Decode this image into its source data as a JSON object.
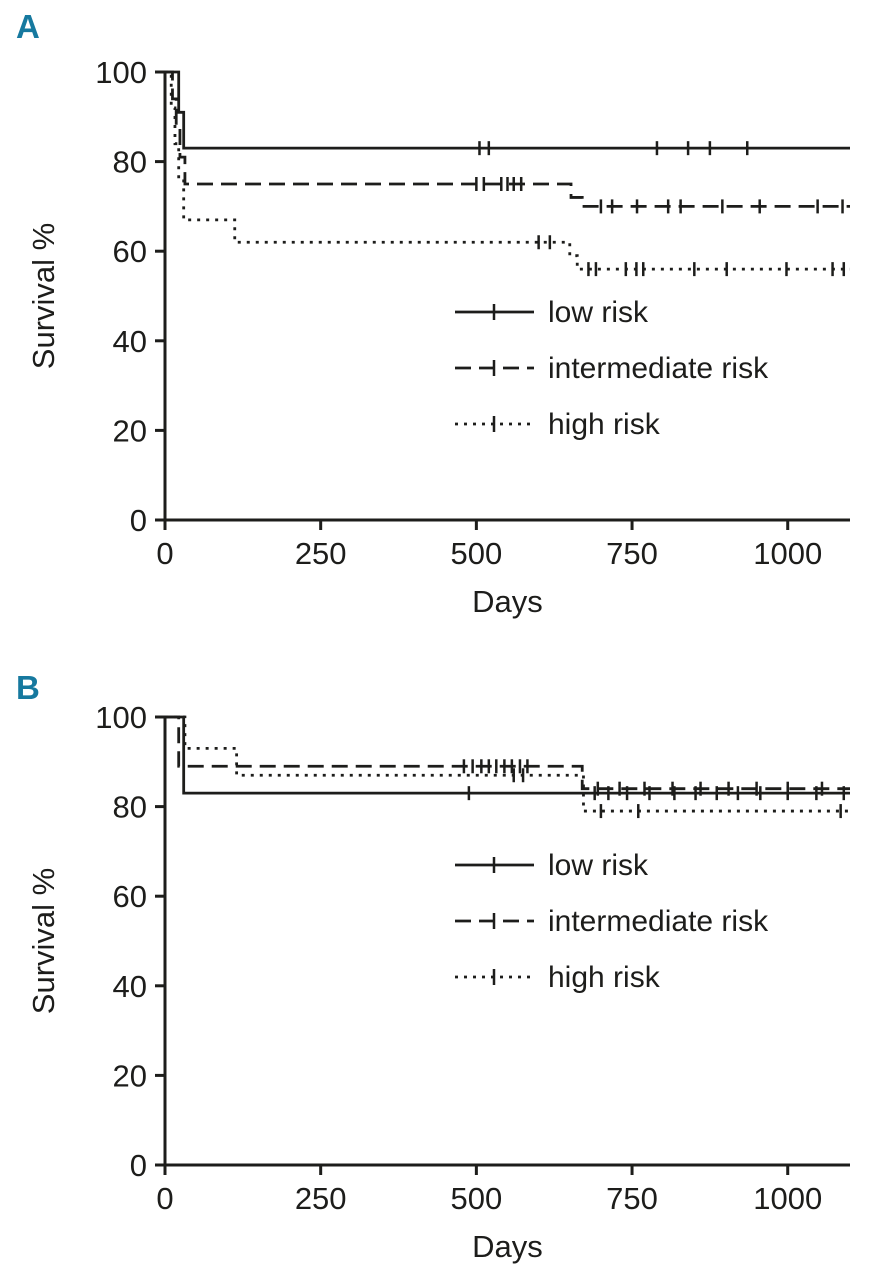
{
  "figure": {
    "line_color": "#1d1d1b",
    "accent_color": "#16799f",
    "panels": [
      {
        "letter": "A"
      },
      {
        "letter": "B"
      }
    ]
  },
  "chart_data": [
    {
      "type": "line",
      "subtype": "kaplan-meier-step",
      "panel": "A",
      "title": "",
      "xlabel": "Days",
      "ylabel": "Survival %",
      "xlim": [
        0,
        1100
      ],
      "ylim": [
        0,
        100
      ],
      "xticks": [
        0,
        250,
        500,
        750,
        1000
      ],
      "yticks": [
        0,
        20,
        40,
        60,
        80,
        100
      ],
      "grid": false,
      "legend_position": "center-right",
      "series": [
        {
          "name": "low risk",
          "style": "solid",
          "points": [
            [
              0,
              100
            ],
            [
              22,
              91
            ],
            [
              30,
              83
            ],
            [
              1100,
              83
            ]
          ],
          "censors": [
            [
              505,
              83
            ],
            [
              520,
              83
            ],
            [
              790,
              83
            ],
            [
              840,
              83
            ],
            [
              875,
              83
            ],
            [
              935,
              83
            ]
          ]
        },
        {
          "name": "intermediate risk",
          "style": "dashed",
          "points": [
            [
              0,
              100
            ],
            [
              12,
              94
            ],
            [
              18,
              88
            ],
            [
              24,
              81
            ],
            [
              32,
              75
            ],
            [
              652,
              72
            ],
            [
              670,
              70
            ],
            [
              1100,
              70
            ]
          ],
          "censors": [
            [
              500,
              75
            ],
            [
              512,
              75
            ],
            [
              540,
              75
            ],
            [
              550,
              75
            ],
            [
              560,
              75
            ],
            [
              572,
              75
            ],
            [
              700,
              70
            ],
            [
              718,
              70
            ],
            [
              758,
              70
            ],
            [
              808,
              70
            ],
            [
              828,
              70
            ],
            [
              895,
              70
            ],
            [
              955,
              70
            ],
            [
              1048,
              70
            ],
            [
              1088,
              70
            ]
          ]
        },
        {
          "name": "high risk",
          "style": "dotted",
          "points": [
            [
              0,
              100
            ],
            [
              10,
              92
            ],
            [
              16,
              84
            ],
            [
              22,
              76
            ],
            [
              30,
              67
            ],
            [
              112,
              62
            ],
            [
              650,
              59
            ],
            [
              662,
              56
            ],
            [
              1100,
              56
            ]
          ],
          "censors": [
            [
              600,
              62
            ],
            [
              618,
              62
            ],
            [
              680,
              56
            ],
            [
              692,
              56
            ],
            [
              740,
              56
            ],
            [
              757,
              56
            ],
            [
              768,
              56
            ],
            [
              850,
              56
            ],
            [
              902,
              56
            ],
            [
              998,
              56
            ],
            [
              1072,
              56
            ],
            [
              1090,
              56
            ]
          ]
        }
      ]
    },
    {
      "type": "line",
      "subtype": "kaplan-meier-step",
      "panel": "B",
      "title": "",
      "xlabel": "Days",
      "ylabel": "Survival %",
      "xlim": [
        0,
        1100
      ],
      "ylim": [
        0,
        100
      ],
      "xticks": [
        0,
        250,
        500,
        750,
        1000
      ],
      "yticks": [
        0,
        20,
        40,
        60,
        80,
        100
      ],
      "grid": false,
      "legend_position": "center-right",
      "series": [
        {
          "name": "low risk",
          "style": "solid",
          "points": [
            [
              0,
              100
            ],
            [
              30,
              83
            ],
            [
              1100,
              83
            ]
          ],
          "censors": [
            [
              488,
              83
            ],
            [
              690,
              83
            ],
            [
              712,
              83
            ],
            [
              742,
              83
            ],
            [
              778,
              83
            ],
            [
              818,
              83
            ],
            [
              852,
              83
            ],
            [
              886,
              83
            ],
            [
              920,
              83
            ],
            [
              956,
              83
            ],
            [
              1000,
              83
            ],
            [
              1046,
              83
            ],
            [
              1090,
              83
            ]
          ]
        },
        {
          "name": "intermediate risk",
          "style": "dashed",
          "points": [
            [
              0,
              100
            ],
            [
              22,
              89
            ],
            [
              670,
              84
            ],
            [
              1100,
              84
            ]
          ],
          "censors": [
            [
              480,
              89
            ],
            [
              494,
              89
            ],
            [
              508,
              89
            ],
            [
              520,
              89
            ],
            [
              532,
              89
            ],
            [
              545,
              89
            ],
            [
              557,
              89
            ],
            [
              570,
              89
            ],
            [
              582,
              89
            ],
            [
              695,
              84
            ],
            [
              730,
              84
            ],
            [
              770,
              84
            ],
            [
              815,
              84
            ],
            [
              860,
              84
            ],
            [
              905,
              84
            ],
            [
              950,
              84
            ],
            [
              1000,
              84
            ],
            [
              1055,
              84
            ]
          ]
        },
        {
          "name": "high risk",
          "style": "dotted",
          "points": [
            [
              0,
              100
            ],
            [
              32,
              93
            ],
            [
              115,
              87
            ],
            [
              672,
              79
            ],
            [
              1100,
              79
            ]
          ],
          "censors": [
            [
              560,
              87
            ],
            [
              575,
              87
            ],
            [
              700,
              79
            ],
            [
              760,
              79
            ],
            [
              1085,
              79
            ]
          ]
        }
      ]
    }
  ]
}
